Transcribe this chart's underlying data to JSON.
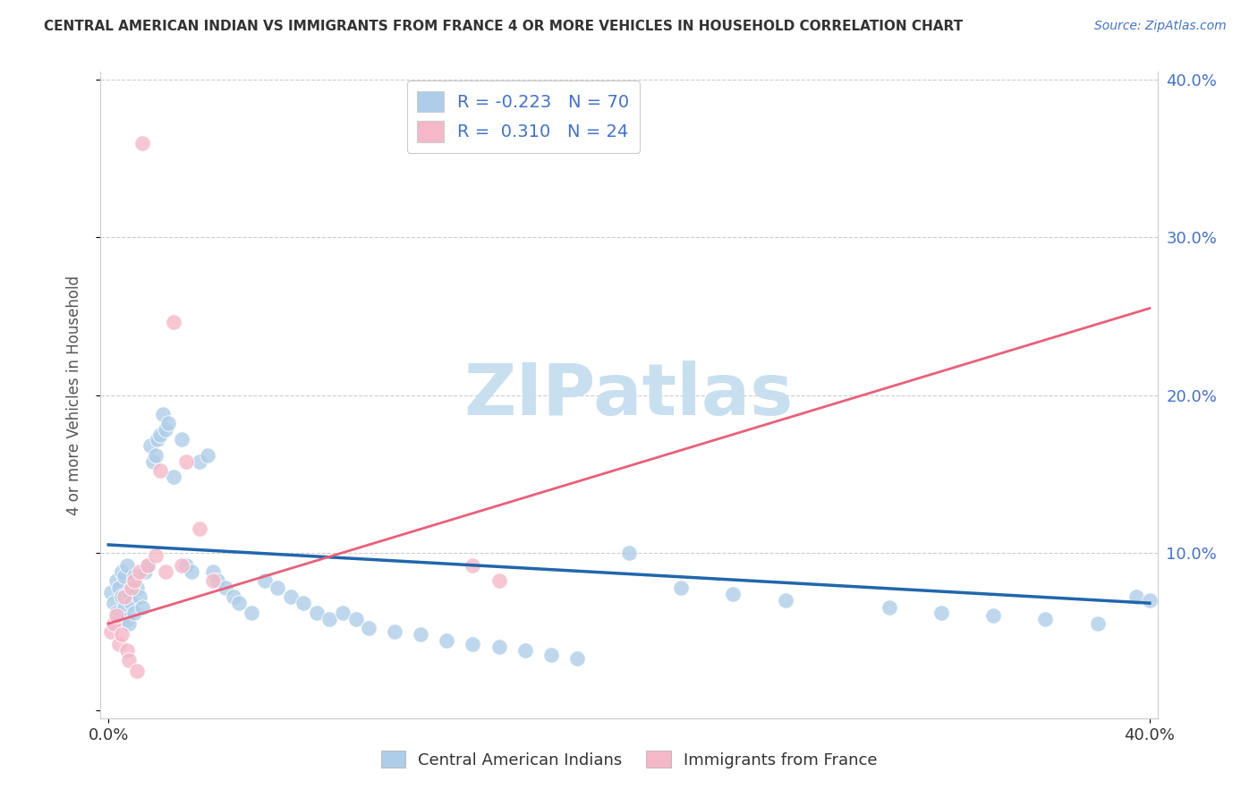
{
  "title": "CENTRAL AMERICAN INDIAN VS IMMIGRANTS FROM FRANCE 4 OR MORE VEHICLES IN HOUSEHOLD CORRELATION CHART",
  "source": "Source: ZipAtlas.com",
  "ylabel": "4 or more Vehicles in Household",
  "legend_blue_r": "-0.223",
  "legend_blue_n": "70",
  "legend_pink_r": "0.310",
  "legend_pink_n": "24",
  "legend_blue_label": "Central American Indians",
  "legend_pink_label": "Immigrants from France",
  "blue_color": "#aecde8",
  "pink_color": "#f4b8c8",
  "blue_line_color": "#2166ac",
  "pink_line_color": "#e8607a",
  "watermark_color": "#c8dff0",
  "label_color": "#4472c4",
  "xlim": [
    0.0,
    0.4
  ],
  "ylim": [
    0.0,
    0.4
  ],
  "blue_trend_y0": 0.105,
  "blue_trend_y1": 0.068,
  "pink_trend_y0": 0.055,
  "pink_trend_y1": 0.255,
  "blue_x": [
    0.001,
    0.002,
    0.003,
    0.003,
    0.004,
    0.004,
    0.005,
    0.005,
    0.006,
    0.006,
    0.007,
    0.007,
    0.008,
    0.008,
    0.009,
    0.01,
    0.01,
    0.011,
    0.012,
    0.013,
    0.014,
    0.015,
    0.016,
    0.017,
    0.018,
    0.019,
    0.02,
    0.021,
    0.022,
    0.023,
    0.025,
    0.028,
    0.03,
    0.032,
    0.035,
    0.038,
    0.04,
    0.042,
    0.045,
    0.048,
    0.05,
    0.055,
    0.06,
    0.065,
    0.07,
    0.075,
    0.08,
    0.085,
    0.09,
    0.095,
    0.1,
    0.11,
    0.12,
    0.13,
    0.14,
    0.15,
    0.16,
    0.17,
    0.18,
    0.2,
    0.22,
    0.24,
    0.26,
    0.3,
    0.32,
    0.34,
    0.36,
    0.38,
    0.395,
    0.4
  ],
  "blue_y": [
    0.075,
    0.068,
    0.062,
    0.082,
    0.058,
    0.078,
    0.072,
    0.088,
    0.065,
    0.085,
    0.058,
    0.092,
    0.055,
    0.075,
    0.068,
    0.062,
    0.085,
    0.078,
    0.072,
    0.065,
    0.088,
    0.092,
    0.168,
    0.158,
    0.162,
    0.172,
    0.175,
    0.188,
    0.178,
    0.182,
    0.148,
    0.172,
    0.092,
    0.088,
    0.158,
    0.162,
    0.088,
    0.082,
    0.078,
    0.072,
    0.068,
    0.062,
    0.082,
    0.078,
    0.072,
    0.068,
    0.062,
    0.058,
    0.062,
    0.058,
    0.052,
    0.05,
    0.048,
    0.044,
    0.042,
    0.04,
    0.038,
    0.035,
    0.033,
    0.1,
    0.078,
    0.074,
    0.07,
    0.065,
    0.062,
    0.06,
    0.058,
    0.055,
    0.072,
    0.07
  ],
  "pink_x": [
    0.001,
    0.002,
    0.003,
    0.004,
    0.005,
    0.006,
    0.007,
    0.008,
    0.009,
    0.01,
    0.011,
    0.012,
    0.013,
    0.015,
    0.018,
    0.02,
    0.022,
    0.025,
    0.028,
    0.03,
    0.035,
    0.04,
    0.14,
    0.15
  ],
  "pink_y": [
    0.05,
    0.055,
    0.06,
    0.042,
    0.048,
    0.072,
    0.038,
    0.032,
    0.078,
    0.082,
    0.025,
    0.088,
    0.36,
    0.092,
    0.098,
    0.152,
    0.088,
    0.246,
    0.092,
    0.158,
    0.115,
    0.082,
    0.092,
    0.082
  ]
}
